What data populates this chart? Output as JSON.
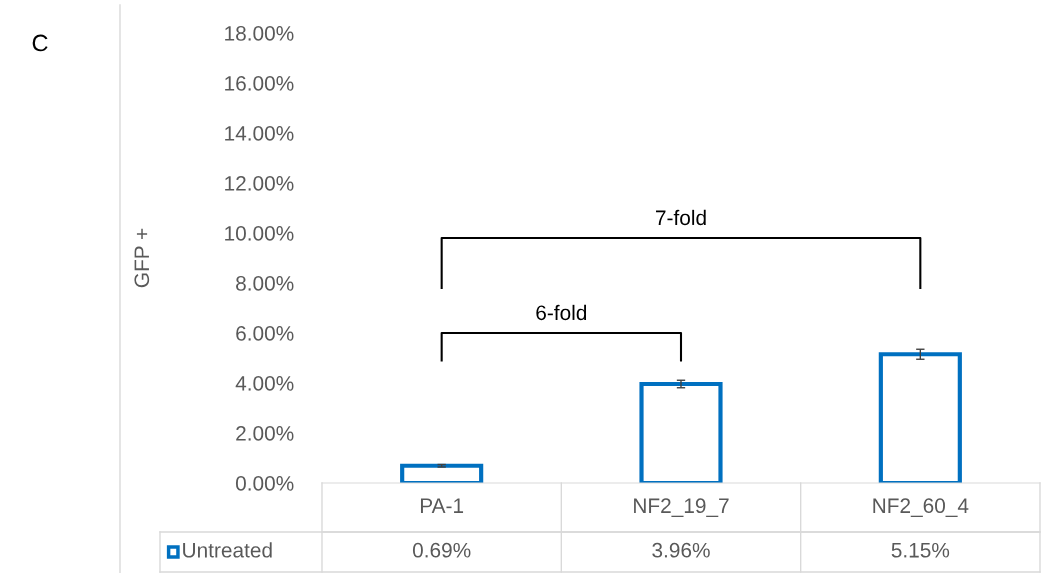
{
  "chart_data": {
    "type": "bar",
    "title": "C",
    "ylabel": "GFP +",
    "categories": [
      "PA-1",
      "NF2_19_7",
      "NF2_60_4"
    ],
    "series": [
      {
        "name": "Untreated",
        "color": "#0070c0",
        "values": [
          0.69,
          3.96,
          5.15
        ],
        "errors": [
          0.05,
          0.15,
          0.2
        ],
        "value_labels": [
          "0.69%",
          "3.96%",
          "5.15%"
        ]
      }
    ],
    "ylim": [
      0,
      18
    ],
    "yticks": [
      {
        "value": 0,
        "label": "0.00%"
      },
      {
        "value": 2,
        "label": "2.00%"
      },
      {
        "value": 4,
        "label": "4.00%"
      },
      {
        "value": 6,
        "label": "6.00%"
      },
      {
        "value": 8,
        "label": "8.00%"
      },
      {
        "value": 10,
        "label": "10.00%"
      },
      {
        "value": 12,
        "label": "12.00%"
      },
      {
        "value": 14,
        "label": "14.00%"
      },
      {
        "value": 16,
        "label": "16.00%"
      },
      {
        "value": 18,
        "label": "18.00%"
      }
    ],
    "annotations": [
      "6-fold",
      "7-fold"
    ],
    "legend": "bottom",
    "grid": false
  }
}
